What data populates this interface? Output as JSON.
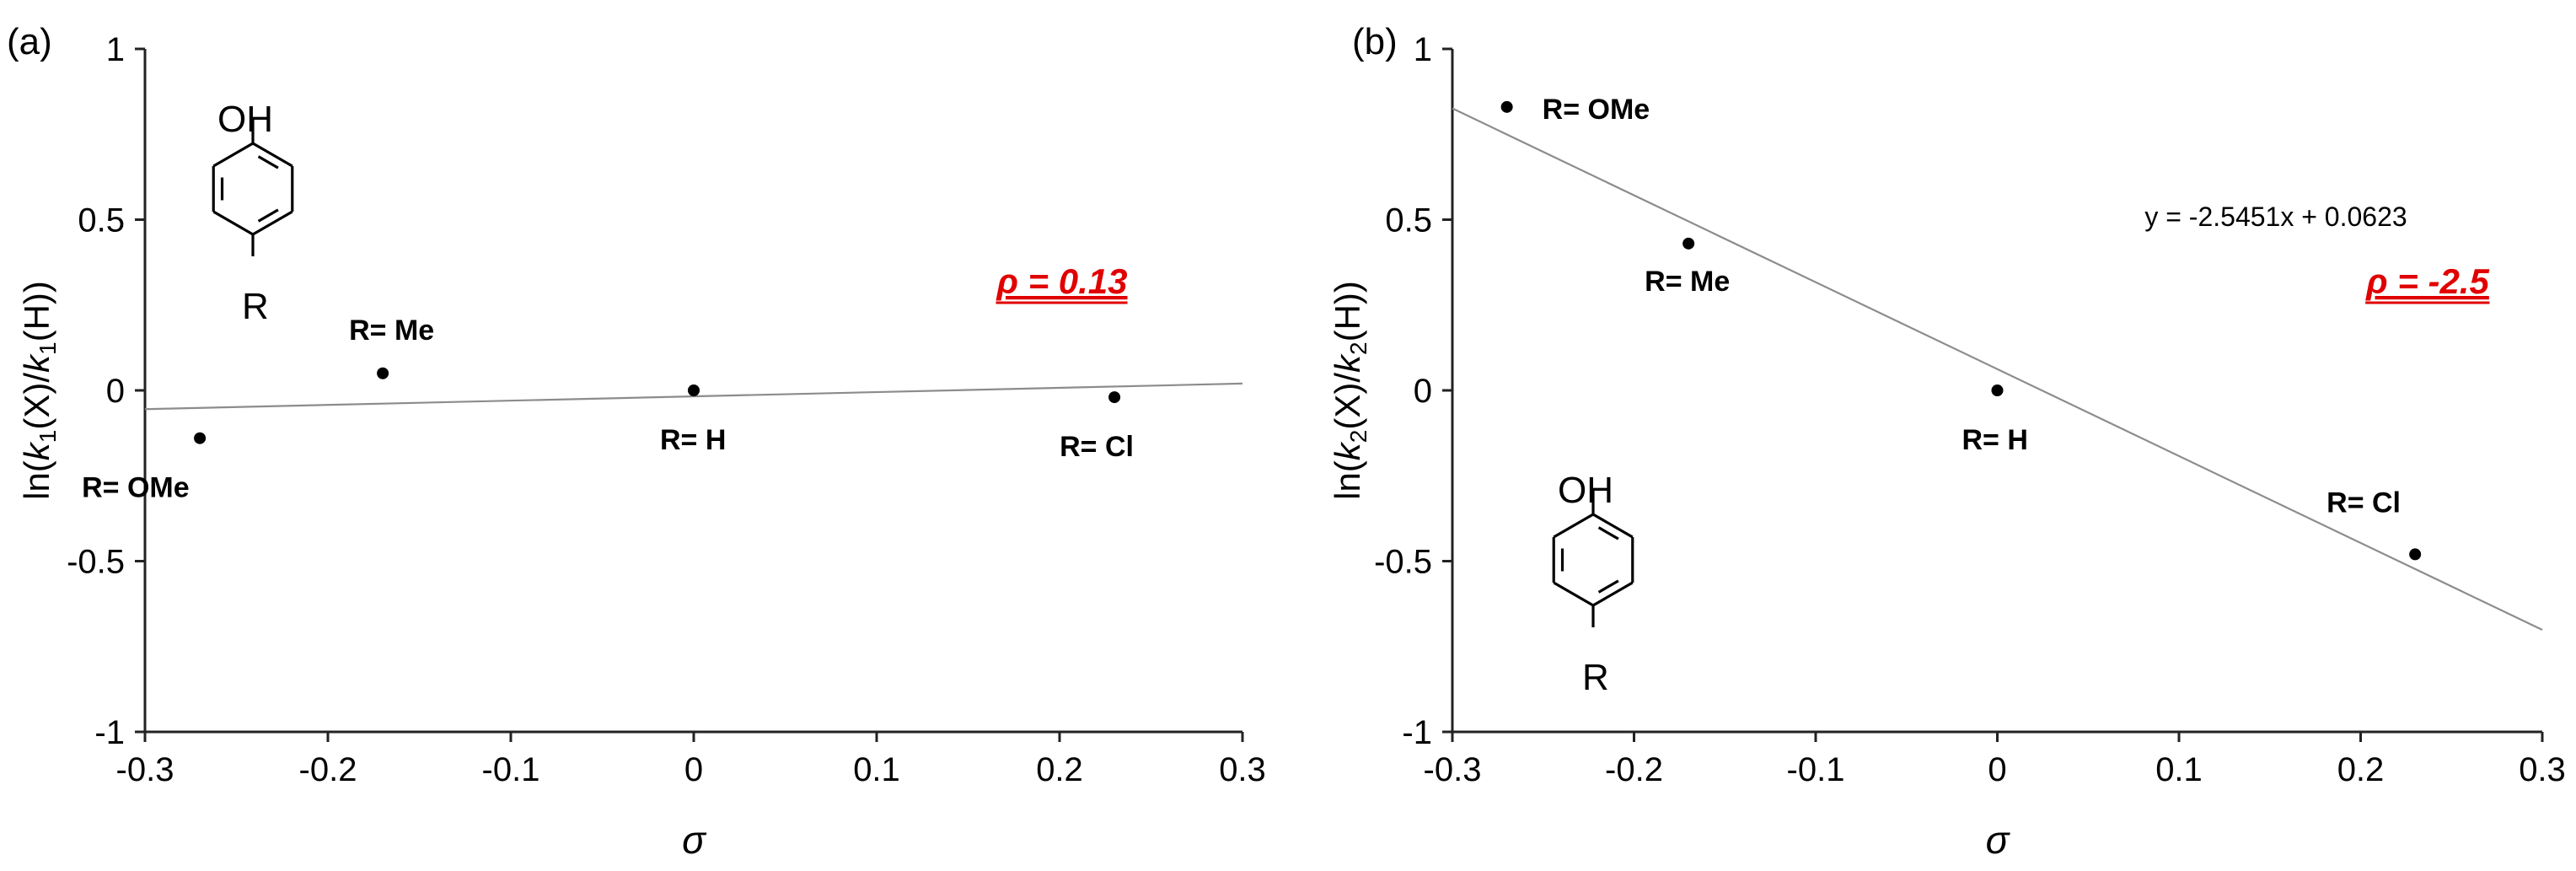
{
  "chart_data": [
    {
      "type": "scatter",
      "panel_label": "(a)",
      "xlabel": "σ",
      "ylabel": "ln(k1(X)/k1(H))",
      "ylabel_parts": [
        "ln(",
        "k",
        "1",
        "(X)/",
        "k",
        "1",
        "(H))"
      ],
      "xlim": [
        -0.3,
        0.3
      ],
      "ylim": [
        -1,
        1
      ],
      "xticks": [
        "-0.3",
        "-0.2",
        "-0.1",
        "0",
        "0.1",
        "0.2",
        "0.3"
      ],
      "yticks": [
        "1",
        "0.5",
        "0",
        "-0.5",
        "-1"
      ],
      "points": [
        {
          "x": -0.27,
          "y": -0.14,
          "label": "R= OMe"
        },
        {
          "x": -0.17,
          "y": 0.05,
          "label": "R= Me"
        },
        {
          "x": 0.0,
          "y": 0.0,
          "label": "R= H"
        },
        {
          "x": 0.23,
          "y": -0.02,
          "label": "R= Cl"
        }
      ],
      "trendline": {
        "x": [
          -0.3,
          0.3
        ],
        "y": [
          -0.055,
          0.02
        ]
      },
      "annotation": "ρ = 0.13",
      "annotation_color": "#e00000",
      "structure": {
        "top_label": "OH",
        "bottom_label": "R"
      }
    },
    {
      "type": "scatter",
      "panel_label": "(b)",
      "xlabel": "σ",
      "ylabel": "ln(k2(X)/k2(H))",
      "ylabel_parts": [
        "ln(",
        "k",
        "2",
        "(X)/",
        "k",
        "2",
        "(H))"
      ],
      "xlim": [
        -0.3,
        0.3
      ],
      "ylim": [
        -1,
        1
      ],
      "xticks": [
        "-0.3",
        "-0.2",
        "-0.1",
        "0",
        "0.1",
        "0.2",
        "0.3"
      ],
      "yticks": [
        "1",
        "0.5",
        "0",
        "-0.5",
        "-1"
      ],
      "points": [
        {
          "x": -0.27,
          "y": 0.83,
          "label": "R= OMe"
        },
        {
          "x": -0.17,
          "y": 0.43,
          "label": "R= Me"
        },
        {
          "x": 0.0,
          "y": 0.0,
          "label": "R= H"
        },
        {
          "x": 0.23,
          "y": -0.48,
          "label": "R= Cl"
        }
      ],
      "trendline": {
        "x": [
          -0.3,
          0.3
        ],
        "y": [
          0.8258,
          -0.7012
        ]
      },
      "equation": "y = -2.5451x + 0.0623",
      "annotation": "ρ = -2.5",
      "annotation_color": "#e00000",
      "structure": {
        "top_label": "OH",
        "bottom_label": "R"
      }
    }
  ]
}
